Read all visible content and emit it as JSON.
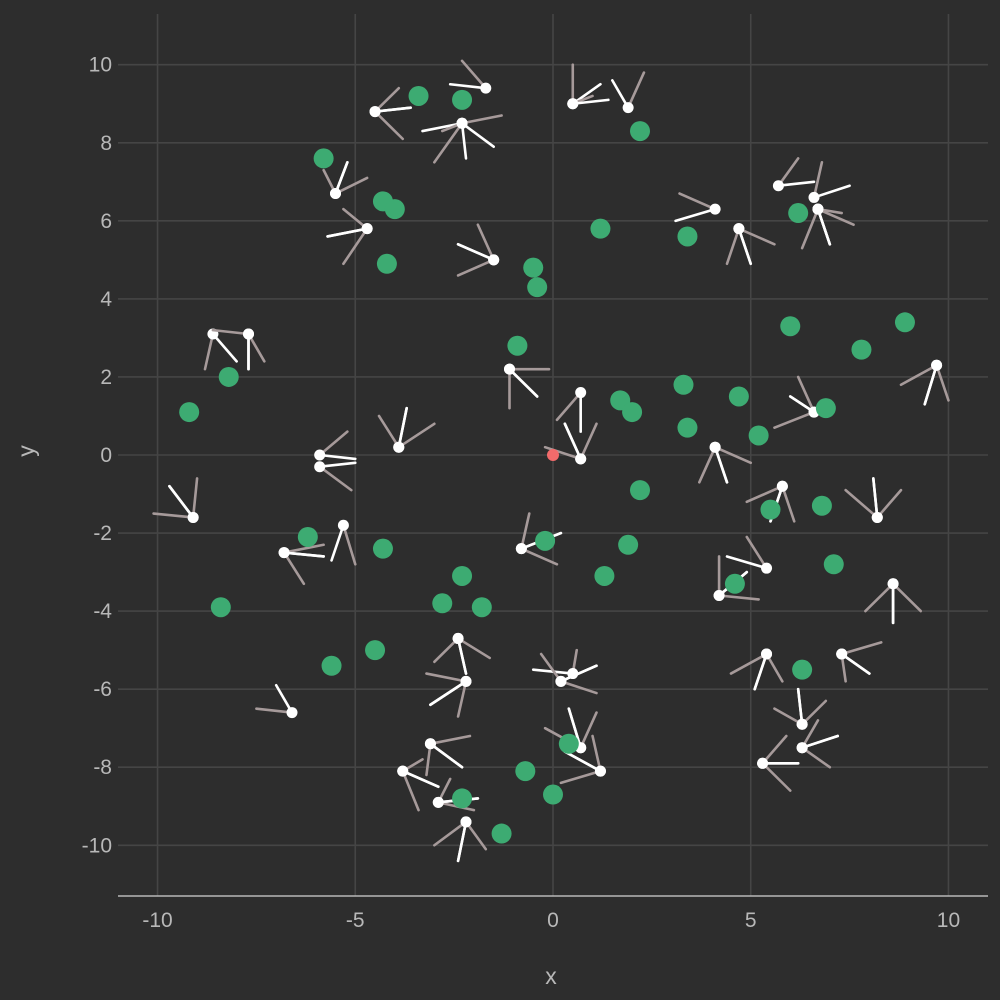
{
  "chart_data": {
    "type": "scatter",
    "xlabel": "x",
    "ylabel": "y",
    "xlim": [
      -11,
      11
    ],
    "ylim": [
      -11.3,
      11.3
    ],
    "xticks": [
      -10,
      -5,
      0,
      5,
      10
    ],
    "yticks": [
      -10,
      -8,
      -6,
      -4,
      -2,
      0,
      2,
      4,
      6,
      8,
      10
    ],
    "xtick_labels": [
      "-10",
      "-5",
      "0",
      "5",
      "10"
    ],
    "ytick_labels": [
      "-10",
      "-8",
      "-6",
      "-4",
      "-2",
      "0",
      "2",
      "4",
      "6",
      "8",
      "10"
    ],
    "grid": true,
    "colors": {
      "background": "#2d2d2d",
      "grid": "#454545",
      "axis_line": "#b8b8b8",
      "text": "#b8b8b8",
      "green_point": "#3dab72",
      "red_point": "#f26b6b",
      "agent_point": "#ffffff",
      "leg_a": "#ffffff",
      "leg_b": "#a69a9a"
    },
    "green_points": [
      [
        -3.4,
        9.2
      ],
      [
        -2.3,
        9.1
      ],
      [
        2.2,
        8.3
      ],
      [
        -5.8,
        7.6
      ],
      [
        -4.3,
        6.5
      ],
      [
        -4.0,
        6.3
      ],
      [
        1.2,
        5.8
      ],
      [
        3.4,
        5.6
      ],
      [
        6.2,
        6.2
      ],
      [
        -4.2,
        4.9
      ],
      [
        -0.5,
        4.8
      ],
      [
        -0.4,
        4.3
      ],
      [
        -0.9,
        2.8
      ],
      [
        6.0,
        3.3
      ],
      [
        7.8,
        2.7
      ],
      [
        8.9,
        3.4
      ],
      [
        -8.2,
        2.0
      ],
      [
        -9.2,
        1.1
      ],
      [
        3.3,
        1.8
      ],
      [
        1.7,
        1.4
      ],
      [
        2.0,
        1.1
      ],
      [
        4.7,
        1.5
      ],
      [
        3.4,
        0.7
      ],
      [
        5.2,
        0.5
      ],
      [
        6.9,
        1.2
      ],
      [
        2.2,
        -0.9
      ],
      [
        5.5,
        -1.4
      ],
      [
        6.8,
        -1.3
      ],
      [
        -6.2,
        -2.1
      ],
      [
        -4.3,
        -2.4
      ],
      [
        -0.2,
        -2.2
      ],
      [
        1.9,
        -2.3
      ],
      [
        7.1,
        -2.8
      ],
      [
        -2.3,
        -3.1
      ],
      [
        1.3,
        -3.1
      ],
      [
        4.6,
        -3.3
      ],
      [
        -2.8,
        -3.8
      ],
      [
        -1.8,
        -3.9
      ],
      [
        -8.4,
        -3.9
      ],
      [
        -4.5,
        -5.0
      ],
      [
        -5.6,
        -5.4
      ],
      [
        6.3,
        -5.5
      ],
      [
        0.4,
        -7.4
      ],
      [
        -0.7,
        -8.1
      ],
      [
        0.0,
        -8.7
      ],
      [
        -2.3,
        -8.8
      ],
      [
        -1.3,
        -9.7
      ]
    ],
    "red_points": [
      [
        0.0,
        0.0
      ]
    ],
    "agents": [
      {
        "x": -4.5,
        "y": 8.8,
        "a": [
          -3.6,
          8.9
        ],
        "b": [
          -3.9,
          9.4
        ]
      },
      {
        "x": -4.5,
        "y": 8.8,
        "a": [
          -3.6,
          8.9
        ],
        "b": [
          -3.8,
          8.1
        ]
      },
      {
        "x": -1.7,
        "y": 9.4,
        "a": [
          -2.6,
          9.5
        ],
        "b": [
          -2.3,
          10.1
        ]
      },
      {
        "x": -2.3,
        "y": 8.5,
        "a": [
          -3.3,
          8.3
        ],
        "b": [
          -1.3,
          8.7
        ]
      },
      {
        "x": -2.3,
        "y": 8.5,
        "a": [
          -1.5,
          7.9
        ],
        "b": [
          -3.0,
          7.5
        ]
      },
      {
        "x": -2.3,
        "y": 8.5,
        "a": [
          -2.2,
          7.6
        ],
        "b": [
          -2.8,
          8.3
        ]
      },
      {
        "x": 0.5,
        "y": 9.0,
        "a": [
          1.2,
          9.5
        ],
        "b": [
          0.5,
          10.0
        ]
      },
      {
        "x": 1.9,
        "y": 8.9,
        "a": [
          1.5,
          9.6
        ],
        "b": [
          2.3,
          9.8
        ]
      },
      {
        "x": 0.5,
        "y": 9.0,
        "a": [
          1.4,
          9.1
        ],
        "b": [
          1.0,
          9.2
        ]
      },
      {
        "x": -5.5,
        "y": 6.7,
        "a": [
          -5.2,
          7.5
        ],
        "b": [
          -4.7,
          7.1
        ]
      },
      {
        "x": -5.5,
        "y": 6.7,
        "a": [
          -5.2,
          7.5
        ],
        "b": [
          -5.8,
          7.3
        ]
      },
      {
        "x": -4.7,
        "y": 5.8,
        "a": [
          -5.7,
          5.6
        ],
        "b": [
          -5.3,
          6.3
        ]
      },
      {
        "x": -4.7,
        "y": 5.8,
        "a": [
          -5.7,
          5.6
        ],
        "b": [
          -5.3,
          4.9
        ]
      },
      {
        "x": -1.5,
        "y": 5.0,
        "a": [
          -2.4,
          5.4
        ],
        "b": [
          -1.9,
          5.9
        ]
      },
      {
        "x": -1.5,
        "y": 5.0,
        "a": [
          -2.4,
          5.4
        ],
        "b": [
          -2.4,
          4.6
        ]
      },
      {
        "x": 4.1,
        "y": 6.3,
        "a": [
          3.1,
          6.0
        ],
        "b": [
          3.2,
          6.7
        ]
      },
      {
        "x": 4.7,
        "y": 5.8,
        "a": [
          5.0,
          4.9
        ],
        "b": [
          4.4,
          4.9
        ]
      },
      {
        "x": 4.7,
        "y": 5.8,
        "a": [
          5.0,
          4.9
        ],
        "b": [
          5.6,
          5.4
        ]
      },
      {
        "x": 5.7,
        "y": 6.9,
        "a": [
          6.6,
          7.0
        ],
        "b": [
          6.2,
          7.6
        ]
      },
      {
        "x": 6.6,
        "y": 6.6,
        "a": [
          7.5,
          6.9
        ],
        "b": [
          6.8,
          7.5
        ]
      },
      {
        "x": 6.7,
        "y": 6.3,
        "a": [
          7.0,
          5.4
        ],
        "b": [
          7.6,
          5.9
        ]
      },
      {
        "x": 6.7,
        "y": 6.3,
        "a": [
          7.0,
          5.4
        ],
        "b": [
          6.3,
          5.3
        ]
      },
      {
        "x": 6.7,
        "y": 6.3,
        "a": [
          7.0,
          5.4
        ],
        "b": [
          7.3,
          6.2
        ]
      },
      {
        "x": -8.6,
        "y": 3.1,
        "a": [
          -8.0,
          2.4
        ],
        "b": [
          -8.8,
          2.2
        ]
      },
      {
        "x": -7.7,
        "y": 3.1,
        "a": [
          -7.7,
          2.2
        ],
        "b": [
          -7.3,
          2.4
        ]
      },
      {
        "x": -7.7,
        "y": 3.1,
        "a": [
          -7.7,
          2.2
        ],
        "b": [
          -8.6,
          3.2
        ]
      },
      {
        "x": -1.1,
        "y": 2.2,
        "a": [
          -0.4,
          1.5
        ],
        "b": [
          -0.1,
          2.2
        ]
      },
      {
        "x": -1.1,
        "y": 2.2,
        "a": [
          -0.4,
          1.5
        ],
        "b": [
          -1.1,
          1.2
        ]
      },
      {
        "x": 0.7,
        "y": 1.6,
        "a": [
          0.7,
          0.6
        ],
        "b": [
          0.1,
          0.9
        ]
      },
      {
        "x": 0.7,
        "y": -0.1,
        "a": [
          0.3,
          0.8
        ],
        "b": [
          1.1,
          0.8
        ]
      },
      {
        "x": 0.7,
        "y": -0.1,
        "a": [
          0.3,
          0.8
        ],
        "b": [
          -0.2,
          0.2
        ]
      },
      {
        "x": 9.7,
        "y": 2.3,
        "a": [
          9.4,
          1.3
        ],
        "b": [
          10.0,
          1.4
        ]
      },
      {
        "x": 9.7,
        "y": 2.3,
        "a": [
          9.4,
          1.3
        ],
        "b": [
          8.8,
          1.8
        ]
      },
      {
        "x": -3.9,
        "y": 0.2,
        "a": [
          -3.7,
          1.2
        ],
        "b": [
          -3.0,
          0.8
        ]
      },
      {
        "x": -3.9,
        "y": 0.2,
        "a": [
          -3.7,
          1.2
        ],
        "b": [
          -4.4,
          1.0
        ]
      },
      {
        "x": -5.9,
        "y": 0.0,
        "a": [
          -5.0,
          -0.1
        ],
        "b": [
          -5.2,
          0.6
        ]
      },
      {
        "x": -5.9,
        "y": -0.3,
        "a": [
          -5.0,
          -0.2
        ],
        "b": [
          -5.1,
          -0.9
        ]
      },
      {
        "x": 4.1,
        "y": 0.2,
        "a": [
          4.4,
          -0.7
        ],
        "b": [
          3.7,
          -0.7
        ]
      },
      {
        "x": 4.1,
        "y": 0.2,
        "a": [
          4.4,
          -0.7
        ],
        "b": [
          5.0,
          -0.2
        ]
      },
      {
        "x": 6.6,
        "y": 1.1,
        "a": [
          6.0,
          1.5
        ],
        "b": [
          6.2,
          2.0
        ]
      },
      {
        "x": 6.6,
        "y": 1.1,
        "a": [
          6.0,
          1.5
        ],
        "b": [
          5.6,
          0.7
        ]
      },
      {
        "x": 5.8,
        "y": -0.8,
        "a": [
          5.5,
          -1.7
        ],
        "b": [
          6.1,
          -1.7
        ]
      },
      {
        "x": 5.8,
        "y": -0.8,
        "a": [
          5.5,
          -1.7
        ],
        "b": [
          4.9,
          -1.2
        ]
      },
      {
        "x": 8.2,
        "y": -1.6,
        "a": [
          8.1,
          -0.6
        ],
        "b": [
          8.8,
          -0.9
        ]
      },
      {
        "x": 8.2,
        "y": -1.6,
        "a": [
          8.1,
          -0.6
        ],
        "b": [
          7.4,
          -0.9
        ]
      },
      {
        "x": -9.1,
        "y": -1.6,
        "a": [
          -9.7,
          -0.8
        ],
        "b": [
          -9.0,
          -0.6
        ]
      },
      {
        "x": -9.1,
        "y": -1.6,
        "a": [
          -9.7,
          -0.8
        ],
        "b": [
          -10.1,
          -1.5
        ]
      },
      {
        "x": -6.8,
        "y": -2.5,
        "a": [
          -5.8,
          -2.6
        ],
        "b": [
          -6.3,
          -3.3
        ]
      },
      {
        "x": -6.8,
        "y": -2.5,
        "a": [
          -5.8,
          -2.6
        ],
        "b": [
          -5.8,
          -2.3
        ]
      },
      {
        "x": -5.3,
        "y": -1.8,
        "a": [
          -5.6,
          -2.7
        ],
        "b": [
          -5.0,
          -2.8
        ]
      },
      {
        "x": -0.8,
        "y": -2.4,
        "a": [
          0.2,
          -2.0
        ],
        "b": [
          -0.6,
          -1.5
        ]
      },
      {
        "x": -0.8,
        "y": -2.4,
        "a": [
          0.2,
          -2.0
        ],
        "b": [
          0.1,
          -2.8
        ]
      },
      {
        "x": 5.4,
        "y": -2.9,
        "a": [
          4.4,
          -2.6
        ],
        "b": [
          4.9,
          -2.1
        ]
      },
      {
        "x": 4.2,
        "y": -3.6,
        "a": [
          4.9,
          -3.0
        ],
        "b": [
          5.2,
          -3.7
        ]
      },
      {
        "x": 4.2,
        "y": -3.6,
        "a": [
          4.9,
          -3.0
        ],
        "b": [
          4.2,
          -2.6
        ]
      },
      {
        "x": 8.6,
        "y": -3.3,
        "a": [
          8.6,
          -4.3
        ],
        "b": [
          9.3,
          -4.0
        ]
      },
      {
        "x": 8.6,
        "y": -3.3,
        "a": [
          8.6,
          -4.3
        ],
        "b": [
          7.9,
          -4.0
        ]
      },
      {
        "x": -2.4,
        "y": -4.7,
        "a": [
          -2.2,
          -5.6
        ],
        "b": [
          -1.6,
          -5.2
        ]
      },
      {
        "x": -2.2,
        "y": -5.8,
        "a": [
          -3.1,
          -6.4
        ],
        "b": [
          -2.4,
          -6.7
        ]
      },
      {
        "x": -2.2,
        "y": -5.8,
        "a": [
          -3.1,
          -6.4
        ],
        "b": [
          -3.2,
          -5.6
        ]
      },
      {
        "x": -2.4,
        "y": -4.7,
        "a": [
          -2.2,
          -5.6
        ],
        "b": [
          -3.0,
          -5.3
        ]
      },
      {
        "x": 0.5,
        "y": -5.6,
        "a": [
          -0.5,
          -5.5
        ],
        "b": [
          0.6,
          -5.0
        ]
      },
      {
        "x": 0.2,
        "y": -5.8,
        "a": [
          1.1,
          -5.4
        ],
        "b": [
          -0.3,
          -5.1
        ]
      },
      {
        "x": 0.2,
        "y": -5.8,
        "a": [
          1.1,
          -5.4
        ],
        "b": [
          1.1,
          -6.1
        ]
      },
      {
        "x": 5.4,
        "y": -5.1,
        "a": [
          5.1,
          -6.0
        ],
        "b": [
          4.5,
          -5.6
        ]
      },
      {
        "x": 5.4,
        "y": -5.1,
        "a": [
          5.1,
          -6.0
        ],
        "b": [
          5.8,
          -5.8
        ]
      },
      {
        "x": 7.3,
        "y": -5.1,
        "a": [
          8.0,
          -5.6
        ],
        "b": [
          8.3,
          -4.8
        ]
      },
      {
        "x": 7.3,
        "y": -5.1,
        "a": [
          8.0,
          -5.6
        ],
        "b": [
          7.4,
          -5.8
        ]
      },
      {
        "x": -6.6,
        "y": -6.6,
        "a": [
          -7.0,
          -5.9
        ],
        "b": [
          -7.5,
          -6.5
        ]
      },
      {
        "x": 6.3,
        "y": -6.9,
        "a": [
          6.2,
          -6.0
        ],
        "b": [
          6.9,
          -6.3
        ]
      },
      {
        "x": 6.3,
        "y": -6.9,
        "a": [
          6.2,
          -6.0
        ],
        "b": [
          5.6,
          -6.5
        ]
      },
      {
        "x": 6.3,
        "y": -7.5,
        "a": [
          7.2,
          -7.2
        ],
        "b": [
          6.7,
          -6.8
        ]
      },
      {
        "x": 6.3,
        "y": -7.5,
        "a": [
          7.2,
          -7.2
        ],
        "b": [
          7.0,
          -8.0
        ]
      },
      {
        "x": 5.3,
        "y": -7.9,
        "a": [
          6.2,
          -7.9
        ],
        "b": [
          6.0,
          -8.6
        ]
      },
      {
        "x": 5.3,
        "y": -7.9,
        "a": [
          6.2,
          -7.9
        ],
        "b": [
          5.9,
          -7.2
        ]
      },
      {
        "x": 0.7,
        "y": -7.5,
        "a": [
          0.4,
          -6.5
        ],
        "b": [
          1.1,
          -6.6
        ]
      },
      {
        "x": 1.2,
        "y": -8.1,
        "a": [
          0.3,
          -7.6
        ],
        "b": [
          0.2,
          -8.4
        ]
      },
      {
        "x": 1.2,
        "y": -8.1,
        "a": [
          0.3,
          -7.6
        ],
        "b": [
          1.0,
          -7.2
        ]
      },
      {
        "x": 0.7,
        "y": -7.5,
        "a": [
          0.4,
          -6.5
        ],
        "b": [
          -0.2,
          -7.0
        ]
      },
      {
        "x": -3.1,
        "y": -7.4,
        "a": [
          -2.3,
          -8.0
        ],
        "b": [
          -2.1,
          -7.2
        ]
      },
      {
        "x": -3.1,
        "y": -7.4,
        "a": [
          -2.3,
          -8.0
        ],
        "b": [
          -3.2,
          -8.2
        ]
      },
      {
        "x": -3.8,
        "y": -8.1,
        "a": [
          -2.9,
          -8.5
        ],
        "b": [
          -3.3,
          -7.8
        ]
      },
      {
        "x": -3.8,
        "y": -8.1,
        "a": [
          -2.9,
          -8.5
        ],
        "b": [
          -3.4,
          -9.1
        ]
      },
      {
        "x": -2.9,
        "y": -8.9,
        "a": [
          -1.9,
          -8.8
        ],
        "b": [
          -2.6,
          -8.3
        ]
      },
      {
        "x": -2.9,
        "y": -8.9,
        "a": [
          -1.9,
          -8.8
        ],
        "b": [
          -2.0,
          -9.1
        ]
      },
      {
        "x": -2.2,
        "y": -9.4,
        "a": [
          -2.4,
          -10.4
        ],
        "b": [
          -1.7,
          -10.1
        ]
      },
      {
        "x": -2.2,
        "y": -9.4,
        "a": [
          -2.4,
          -10.4
        ],
        "b": [
          -3.0,
          -10.0
        ]
      }
    ]
  }
}
